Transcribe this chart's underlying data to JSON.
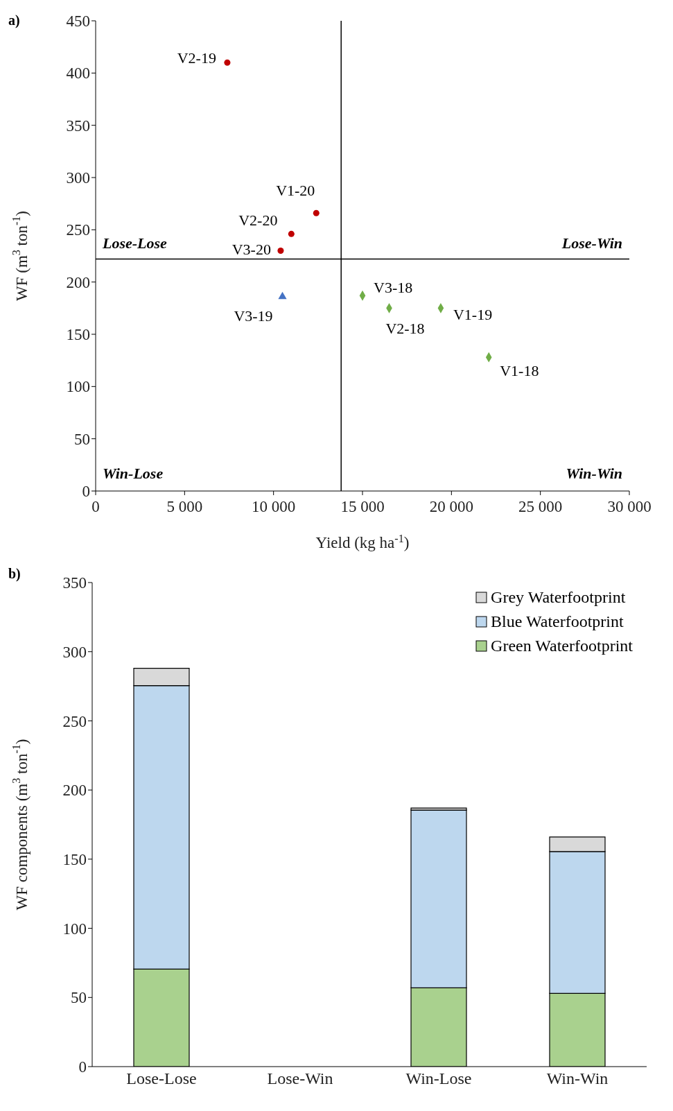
{
  "chart_data": [
    {
      "type": "scatter",
      "title": "a)",
      "xlabel": "Yield (kg ha$^{-1}$)",
      "ylabel": "WF (m$^{3}$ ton$^{-1}$)",
      "series": [
        {
          "color": "#c00000",
          "marker": "circle",
          "x": [
            7400,
            12400,
            11000,
            10400
          ],
          "values": [
            410,
            266,
            246,
            230
          ]
        },
        {
          "color": "#4472c4",
          "marker": "triangle",
          "x": [
            10500
          ],
          "values": [
            186
          ]
        },
        {
          "color": "#70ad47",
          "marker": "diamond",
          "x": [
            15000,
            16500,
            19400,
            22100
          ],
          "values": [
            187,
            175,
            175,
            128
          ]
        }
      ],
      "xlim": [
        0,
        30000
      ],
      "xticks": [
        0,
        {
          "value": 5000,
          "label": "5 000"
        },
        {
          "value": 10000,
          "label": "10 000"
        },
        {
          "value": 15000,
          "label": "15 000"
        },
        {
          "value": 20000,
          "label": "20 000"
        },
        {
          "value": 25000,
          "label": "25 000"
        },
        {
          "value": 30000,
          "label": "30 000"
        }
      ],
      "ylim": [
        0,
        450
      ],
      "yticks": [
        0,
        50,
        100,
        150,
        200,
        250,
        300,
        350,
        400,
        450
      ],
      "ref_lines": [
        {
          "axis": "x",
          "value": 13800,
          "color": "#000000"
        },
        {
          "axis": "y",
          "value": 222,
          "color": "#000000"
        }
      ],
      "annotations": [
        "Lose-Lose",
        "Lose-Win",
        "Win-Lose",
        "Win-Win",
        {
          "text": "V2-19",
          "x": 7400,
          "y": 410
        },
        {
          "text": "V1-20",
          "x": 12400,
          "y": 266
        },
        {
          "text": "V2-20",
          "x": 11000,
          "y": 246
        },
        {
          "text": "V3-20",
          "x": 10400,
          "y": 230
        },
        {
          "text": "V3-19",
          "x": 10500,
          "y": 186
        },
        {
          "text": "V3-18",
          "x": 15000,
          "y": 187
        },
        {
          "text": "V2-18",
          "x": 16500,
          "y": 175
        },
        {
          "text": "V1-19",
          "x": 19400,
          "y": 175
        },
        {
          "text": "V1-18",
          "x": 22100,
          "y": 128
        }
      ]
    },
    {
      "type": "bar",
      "title": "b)",
      "ylabel": "WF components (m$^{3}$ ton$^{-1}$)",
      "stacked": true,
      "categories": [
        "Lose-Lose",
        "Lose-Win",
        "Win-Lose",
        "Win-Win"
      ],
      "series": [
        {
          "name": "Green Waterfootprint",
          "color": "#a9d18e",
          "values": [
            70.5,
            null,
            57,
            53
          ]
        },
        {
          "name": "Blue Waterfootprint",
          "color": "#bdd7ee",
          "values": [
            205,
            null,
            128.5,
            102.5
          ]
        },
        {
          "name": "Grey Waterfootprint",
          "color": "#d9d9d9",
          "values": [
            12.5,
            null,
            1.5,
            10.5
          ]
        }
      ],
      "ylim": [
        0,
        350
      ],
      "yticks": [
        0,
        50,
        100,
        150,
        200,
        250,
        300,
        350
      ],
      "legend": "top right"
    }
  ]
}
